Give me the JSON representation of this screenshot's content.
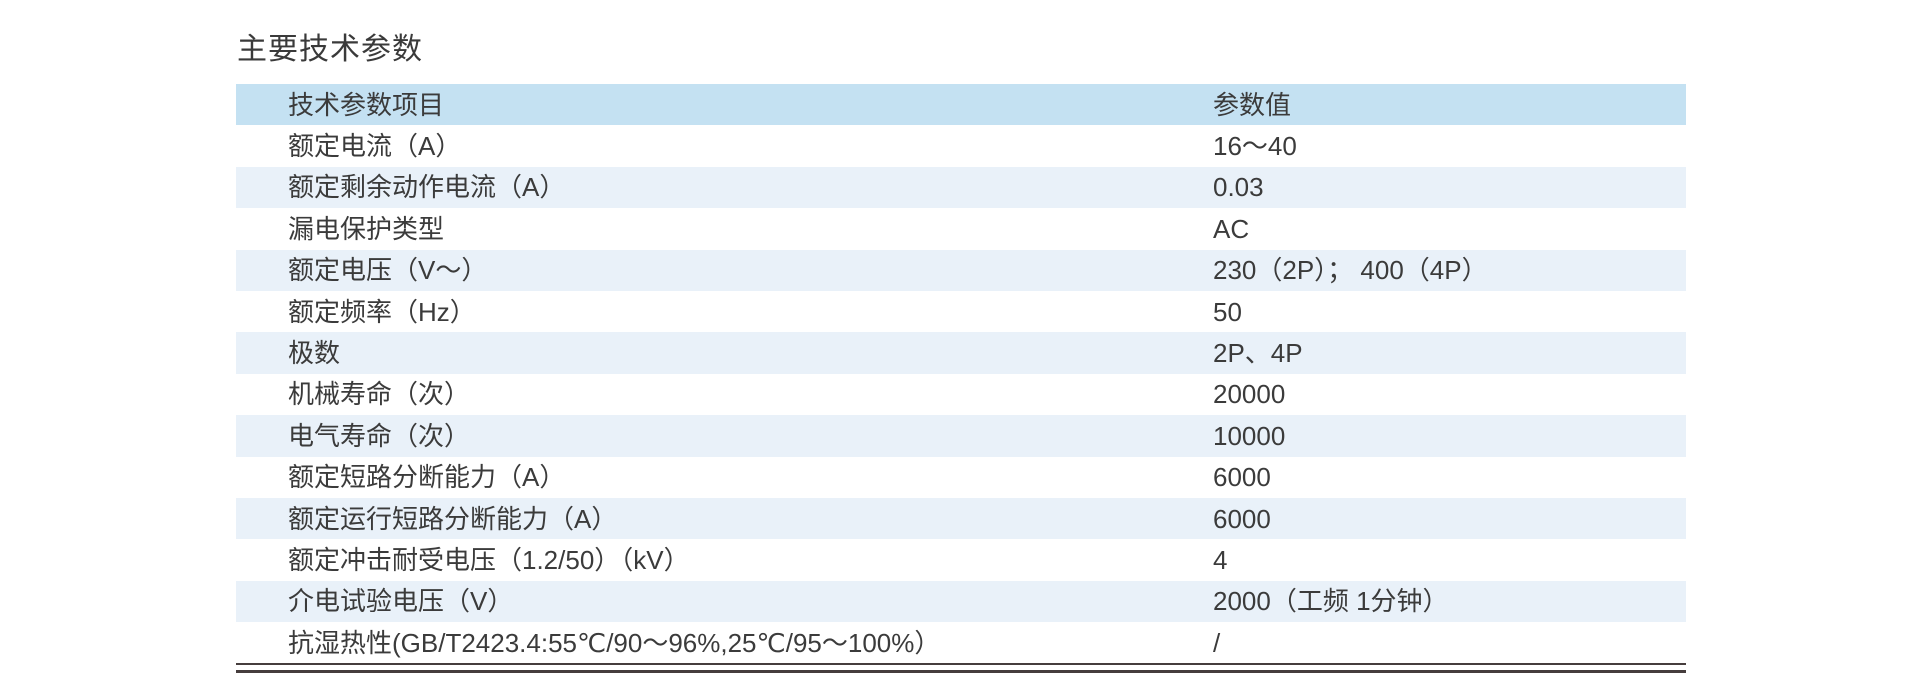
{
  "page": {
    "title": "主要技术参数"
  },
  "colors": {
    "header_bg": "#c4e1f2",
    "alt_row_bg": "#e9f1f9",
    "text": "#3b3b3b",
    "rule": "#463d3d"
  },
  "table": {
    "columns": [
      "技术参数项目",
      "参数值"
    ],
    "rows": [
      {
        "label": "额定电流（A）",
        "value": "16～40"
      },
      {
        "label": "额定剩余动作电流（A）",
        "value": "0.03"
      },
      {
        "label": "漏电保护类型",
        "value": "AC"
      },
      {
        "label": "额定电压（V～）",
        "value": "230（2P）； 400（4P）"
      },
      {
        "label": "额定频率（Hz）",
        "value": "50"
      },
      {
        "label": "极数",
        "value": "2P、4P"
      },
      {
        "label": "机械寿命（次）",
        "value": "20000"
      },
      {
        "label": "电气寿命（次）",
        "value": "10000"
      },
      {
        "label": "额定短路分断能力（A）",
        "value": "6000"
      },
      {
        "label": "额定运行短路分断能力（A）",
        "value": "6000"
      },
      {
        "label": "额定冲击耐受电压（1.2/50）（kV）",
        "value": "4"
      },
      {
        "label": "介电试验电压（V）",
        "value": "2000（工频 1分钟）"
      },
      {
        "label": "抗湿热性(GB/T2423.4:55℃/90～96%,25℃/95～100%）",
        "value": "/"
      }
    ]
  }
}
